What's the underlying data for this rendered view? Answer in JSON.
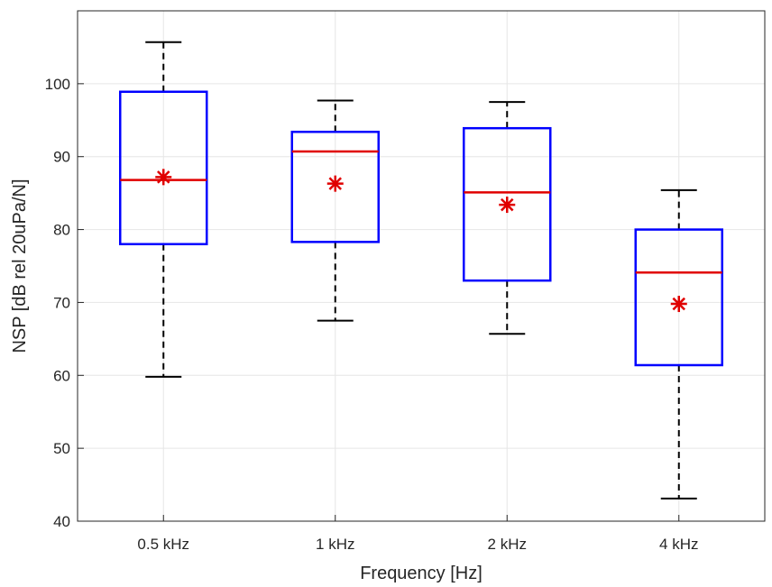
{
  "chart_data": {
    "type": "boxplot",
    "title": "",
    "xlabel": "Frequency [Hz]",
    "ylabel": "NSP [dB rel 20uPa/N]",
    "ylim": [
      40,
      110
    ],
    "yticks": [
      40,
      50,
      60,
      70,
      80,
      90,
      100
    ],
    "grid": true,
    "categories": [
      "0.5 kHz",
      "1 kHz",
      "2 kHz",
      "4 kHz"
    ],
    "boxes": [
      {
        "whisker_low": 59.8,
        "q1": 78.0,
        "median": 86.8,
        "q3": 98.9,
        "whisker_high": 105.7,
        "mean": 87.2
      },
      {
        "whisker_low": 67.5,
        "q1": 78.3,
        "median": 90.7,
        "q3": 93.4,
        "whisker_high": 97.7,
        "mean": 86.3
      },
      {
        "whisker_low": 65.7,
        "q1": 73.0,
        "median": 85.1,
        "q3": 93.9,
        "whisker_high": 97.5,
        "mean": 83.4
      },
      {
        "whisker_low": 43.1,
        "q1": 61.4,
        "median": 74.1,
        "q3": 80.0,
        "whisker_high": 85.4,
        "mean": 69.8
      }
    ],
    "colors": {
      "box": "#0000ff",
      "median": "#e00000",
      "mean": "#e00000",
      "whisker": "#000000",
      "grid": "#e6e6e6",
      "axis": "#262626"
    }
  }
}
